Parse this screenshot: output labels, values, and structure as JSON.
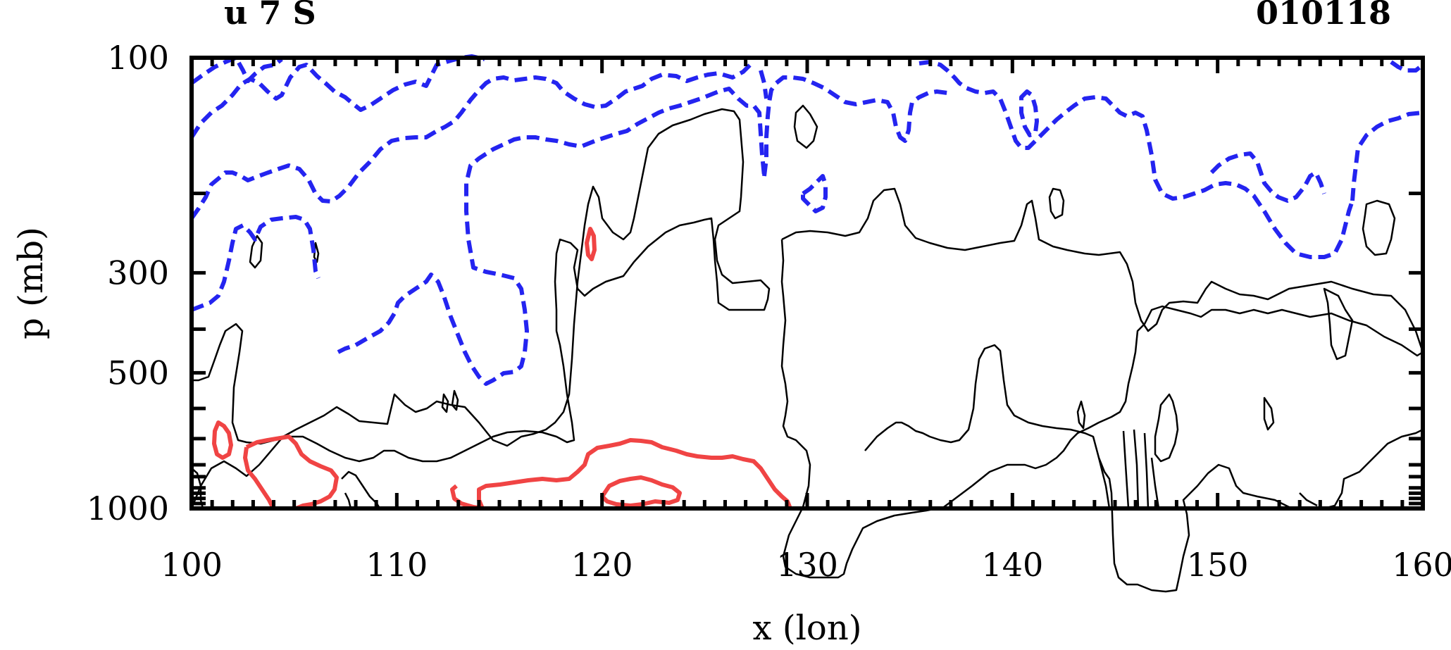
{
  "chart_data": {
    "type": "contour",
    "title_left": "u 7 S",
    "title_right": "010118",
    "xlabel": "x (lon)",
    "ylabel": "p (mb)",
    "xlim": [
      100,
      160
    ],
    "ylim": [
      100,
      1000
    ],
    "y_scale": "log",
    "xticks": [
      "100",
      "110",
      "120",
      "130",
      "140",
      "150",
      "160"
    ],
    "yticks": [
      "100",
      "300",
      "500",
      "1000"
    ],
    "grid": false,
    "colors": {
      "negative": "#2424f0",
      "positive": "#f04444",
      "zero": "#000000"
    }
  }
}
